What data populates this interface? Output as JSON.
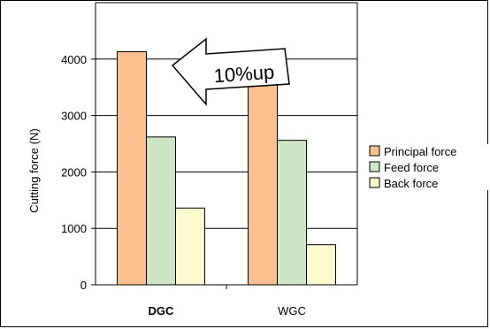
{
  "chart_data": {
    "type": "bar",
    "title": "",
    "xlabel": "",
    "ylabel": "Cutting force (N)",
    "ylim": [
      0,
      5000
    ],
    "yticks": [
      0,
      1000,
      2000,
      3000,
      4000
    ],
    "grid": true,
    "legend_position": "right",
    "categories": [
      "DGC",
      "WGC"
    ],
    "category_bold": [
      true,
      false
    ],
    "series": [
      {
        "name": "Principal force",
        "values": [
          4130,
          3750
        ],
        "color": "#fbc08f"
      },
      {
        "name": "Feed force",
        "values": [
          2620,
          2560
        ],
        "color": "#cfe6c6"
      },
      {
        "name": "Back force",
        "values": [
          1360,
          710
        ],
        "color": "#fbfbcf"
      }
    ],
    "annotation": {
      "text": "10%up",
      "shape": "left-arrow"
    }
  }
}
